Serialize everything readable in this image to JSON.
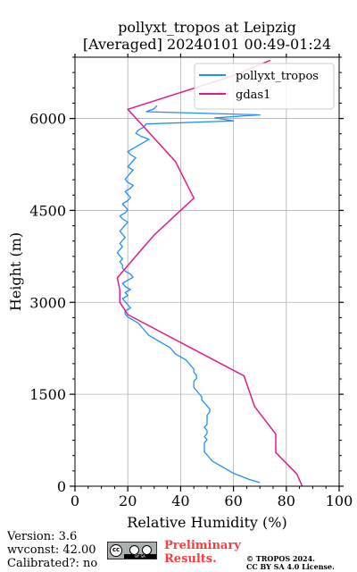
{
  "header": {
    "title_line1": "pollyxt_tropos at Leipzig",
    "title_line2": "[Averaged] 20240101 00:49-01:24"
  },
  "footer": {
    "version": "Version: 3.6",
    "wvconst": "wvconst:  42.00",
    "calibrated": "Calibrated?: no",
    "preliminary_line1": "Preliminary",
    "preliminary_line2": "Results.",
    "copyright_line1": "© TROPOS 2024.",
    "copyright_line2": "CC BY SA 4.0 License.",
    "license_badge_text": "BY   SA"
  },
  "chart_data": {
    "type": "line",
    "xlabel": "Relative Humidity (%)",
    "ylabel": "Height (m)",
    "xlim": [
      0,
      100
    ],
    "ylim": [
      0,
      7000
    ],
    "x_ticks": [
      0,
      20,
      40,
      60,
      80,
      100
    ],
    "y_ticks": [
      0,
      1500,
      3000,
      4500,
      6000
    ],
    "grid": true,
    "legend_position": "top-right",
    "series": [
      {
        "name": "pollyxt_tropos",
        "color": "#1f8fff",
        "rh": [
          70,
          66,
          63,
          60,
          58,
          56,
          54,
          52,
          51,
          50,
          49,
          49,
          49,
          49,
          50,
          49,
          50,
          50,
          49,
          50,
          50,
          50,
          50,
          51,
          51,
          50,
          49,
          48,
          48,
          47,
          46,
          45,
          45,
          45,
          46,
          46,
          45,
          45,
          44,
          43,
          42,
          40,
          38,
          37,
          36,
          34,
          32,
          30,
          28,
          27,
          26,
          25,
          24,
          22,
          20,
          19,
          19,
          21,
          20,
          19,
          18,
          20,
          19,
          21,
          19,
          18,
          20,
          22,
          21,
          19,
          18,
          18,
          17,
          18,
          17,
          16,
          17,
          18,
          17,
          18,
          19,
          18,
          17,
          18,
          19,
          20,
          18,
          17,
          19,
          20,
          19,
          18,
          20,
          21,
          20,
          19,
          21,
          22,
          20,
          19,
          20,
          21,
          22,
          20,
          21,
          22,
          23,
          21,
          20,
          22,
          24,
          26,
          28,
          25,
          23,
          24,
          26,
          27,
          60,
          53,
          70,
          27,
          30,
          31
        ],
        "height": [
          60,
          110,
          160,
          210,
          260,
          310,
          360,
          410,
          460,
          510,
          560,
          610,
          660,
          710,
          760,
          810,
          860,
          910,
          960,
          1010,
          1060,
          1110,
          1160,
          1210,
          1260,
          1310,
          1360,
          1410,
          1460,
          1510,
          1560,
          1610,
          1660,
          1710,
          1760,
          1810,
          1860,
          1910,
          1960,
          2010,
          2060,
          2110,
          2160,
          2210,
          2260,
          2310,
          2360,
          2410,
          2460,
          2510,
          2560,
          2610,
          2660,
          2710,
          2760,
          2810,
          2860,
          2910,
          2960,
          3010,
          3060,
          3110,
          3160,
          3210,
          3260,
          3310,
          3360,
          3410,
          3460,
          3510,
          3560,
          3610,
          3660,
          3710,
          3760,
          3810,
          3860,
          3910,
          3960,
          4010,
          4060,
          4110,
          4160,
          4210,
          4260,
          4310,
          4360,
          4410,
          4460,
          4510,
          4560,
          4610,
          4660,
          4710,
          4760,
          4810,
          4860,
          4910,
          4960,
          5010,
          5060,
          5110,
          5160,
          5210,
          5260,
          5310,
          5360,
          5410,
          5460,
          5510,
          5560,
          5610,
          5660,
          5710,
          5760,
          5810,
          5860,
          5910,
          5960,
          6010,
          6060,
          6110,
          6160,
          6210
        ]
      },
      {
        "name": "gdas1",
        "color": "#e6198c",
        "rh": [
          86,
          84,
          76,
          76,
          68,
          64,
          20,
          17,
          17,
          16,
          24,
          30,
          45,
          38,
          20,
          60,
          74
        ],
        "height": [
          0,
          200,
          550,
          850,
          1300,
          1800,
          2800,
          3000,
          3200,
          3400,
          3800,
          4100,
          4700,
          5300,
          6150,
          6700,
          6950
        ]
      }
    ]
  }
}
